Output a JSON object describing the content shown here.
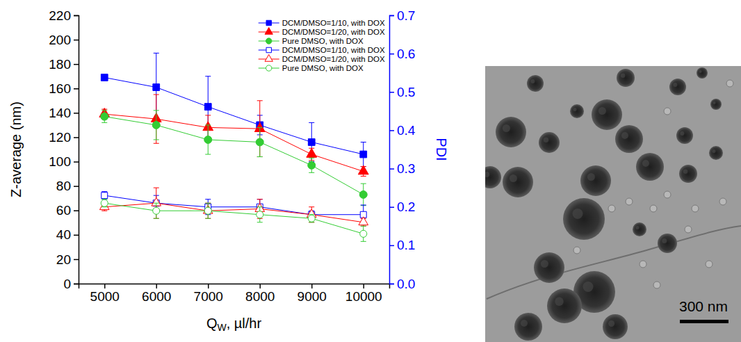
{
  "chart_data": {
    "type": "line",
    "xlabel": [
      "Q",
      "W",
      ", µl/hr"
    ],
    "ylabel": "Z-average (nm)",
    "y2label": "PDI",
    "x": [
      5000,
      6000,
      7000,
      8000,
      9000,
      10000
    ],
    "xlim": [
      4500,
      10500
    ],
    "xticks": [
      5000,
      6000,
      7000,
      8000,
      9000,
      10000
    ],
    "ylim": [
      0,
      220
    ],
    "yticks": [
      0,
      20,
      40,
      60,
      80,
      100,
      120,
      140,
      160,
      180,
      200,
      220
    ],
    "y2lim": [
      0,
      0.7
    ],
    "y2ticks": [
      {
        "value": 0,
        "label": "0.0"
      },
      0.1,
      0.2,
      0.3,
      0.4,
      0.5,
      0.6,
      0.7
    ],
    "legend": "top-right",
    "series": [
      {
        "name": "DCM/DMSO=1/10, with DOX",
        "color": "#0000ff",
        "marker": "square",
        "axis": "y",
        "values": [
          169,
          161,
          145,
          130,
          116,
          106
        ],
        "errors": [
          2,
          28,
          25,
          8,
          16,
          10
        ]
      },
      {
        "name": "DCM/DMSO=1/20, with DOX",
        "color": "#ff0000",
        "marker": "triangle",
        "axis": "y",
        "values": [
          139,
          135,
          128,
          127,
          106,
          92
        ],
        "errors": [
          4,
          20,
          10,
          23,
          5,
          4
        ]
      },
      {
        "name": "Pure DMSO, with DOX",
        "color": "#33cc33",
        "marker": "circle",
        "axis": "y",
        "values": [
          137,
          130,
          118,
          116,
          97,
          73
        ],
        "errors": [
          5,
          12,
          12,
          12,
          6,
          9
        ]
      },
      {
        "name": "DCM/DMSO=1/10, with DOX",
        "color": "#0000ff",
        "marker": "square-open",
        "axis": "y2",
        "values": [
          0.23,
          0.21,
          0.2,
          0.2,
          0.18,
          0.18
        ],
        "errors": [
          0.01,
          0.02,
          0.02,
          0.02,
          0.01,
          0.025
        ]
      },
      {
        "name": "DCM/DMSO=1/20, with DOX",
        "color": "#ff0000",
        "marker": "triangle-open",
        "axis": "y2",
        "values": [
          0.2,
          0.21,
          0.19,
          0.195,
          0.18,
          0.16
        ],
        "errors": [
          0.01,
          0.04,
          0.02,
          0.025,
          0.02,
          0.01
        ]
      },
      {
        "name": "Pure DMSO, with DOX",
        "color": "#33cc33",
        "marker": "circle-open",
        "axis": "y2",
        "values": [
          0.21,
          0.19,
          0.19,
          0.18,
          0.17,
          0.13
        ],
        "errors": [
          0.01,
          0.02,
          0.02,
          0.02,
          0.01,
          0.02
        ]
      }
    ]
  },
  "image": {
    "scale_bar": "300 nm"
  }
}
